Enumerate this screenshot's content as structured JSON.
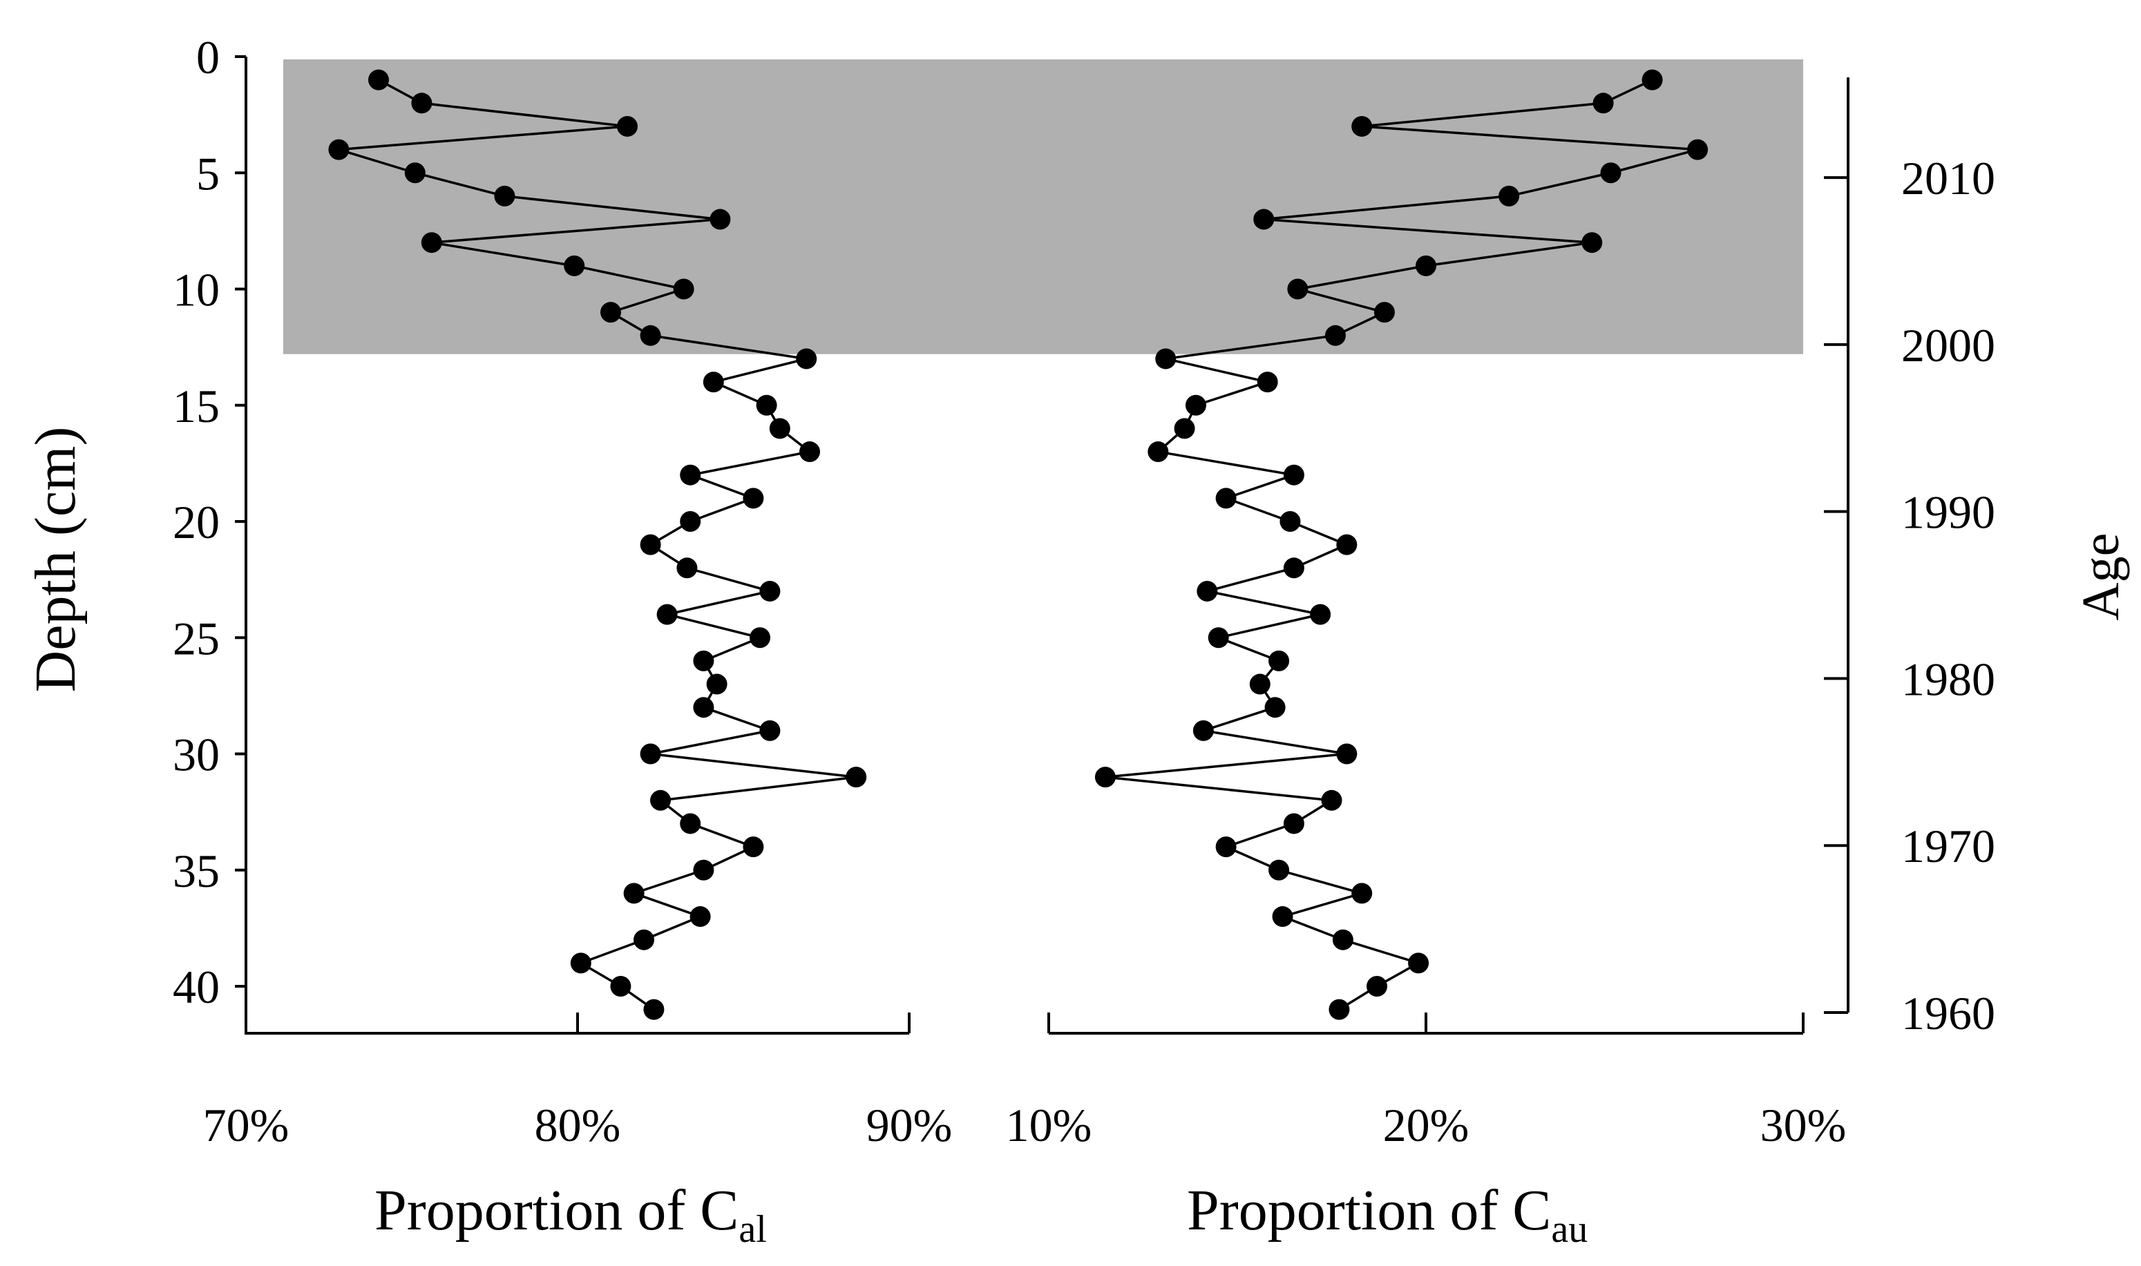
{
  "chart_data": [
    {
      "type": "line",
      "panel": "left",
      "xlabel": "Proportion of C",
      "xlabel_subscript": "al",
      "ylabel": "Depth (cm)",
      "xlim": [
        0.7,
        0.9
      ],
      "ylim": [
        0,
        42
      ],
      "x_ticks": [
        "70%",
        "80%",
        "90%"
      ],
      "y_ticks": [
        "0",
        "5",
        "10",
        "15",
        "20",
        "25",
        "30",
        "35",
        "40"
      ],
      "shaded_depth_range": [
        0,
        12.8
      ],
      "shade_color": "#b0b0b0",
      "series": [
        {
          "depth": [
            1,
            2,
            3,
            4,
            5,
            6,
            7,
            8,
            9,
            10,
            11,
            12,
            13,
            14,
            15,
            16,
            17,
            18,
            19,
            20,
            21,
            22,
            23,
            24,
            25,
            26,
            27,
            28,
            29,
            30,
            31,
            32,
            33,
            34,
            35,
            36,
            37,
            38,
            39,
            40,
            41
          ],
          "values": [
            0.74,
            0.753,
            0.815,
            0.728,
            0.751,
            0.778,
            0.843,
            0.756,
            0.799,
            0.832,
            0.81,
            0.822,
            0.869,
            0.841,
            0.857,
            0.861,
            0.87,
            0.834,
            0.853,
            0.834,
            0.822,
            0.833,
            0.858,
            0.827,
            0.855,
            0.838,
            0.842,
            0.838,
            0.858,
            0.822,
            0.884,
            0.825,
            0.834,
            0.853,
            0.838,
            0.817,
            0.837,
            0.82,
            0.801,
            0.813,
            0.823
          ]
        }
      ]
    },
    {
      "type": "line",
      "panel": "right",
      "xlabel": "Proportion of C",
      "xlabel_subscript": "au",
      "y2label": "Age",
      "xlim": [
        0.1,
        0.3
      ],
      "ylim": [
        0,
        42
      ],
      "age_lim": [
        1960,
        2016
      ],
      "x_ticks": [
        "10%",
        "20%",
        "30%"
      ],
      "age_ticks": [
        "2010",
        "2000",
        "1990",
        "1980",
        "1970",
        "1960"
      ],
      "shaded_depth_range": [
        0,
        12.8
      ],
      "series": [
        {
          "depth": [
            1,
            2,
            3,
            4,
            5,
            6,
            7,
            8,
            9,
            10,
            11,
            12,
            13,
            14,
            15,
            16,
            17,
            18,
            19,
            20,
            21,
            22,
            23,
            24,
            25,
            26,
            27,
            28,
            29,
            30,
            31,
            32,
            33,
            34,
            35,
            36,
            37,
            38,
            39,
            40,
            41
          ],
          "values": [
            0.26,
            0.247,
            0.183,
            0.272,
            0.249,
            0.222,
            0.157,
            0.244,
            0.2,
            0.166,
            0.189,
            0.176,
            0.131,
            0.158,
            0.139,
            0.136,
            0.129,
            0.165,
            0.147,
            0.164,
            0.179,
            0.165,
            0.142,
            0.172,
            0.145,
            0.161,
            0.156,
            0.16,
            0.141,
            0.179,
            0.115,
            0.175,
            0.165,
            0.147,
            0.161,
            0.183,
            0.162,
            0.178,
            0.198,
            0.187,
            0.177
          ]
        }
      ]
    }
  ]
}
